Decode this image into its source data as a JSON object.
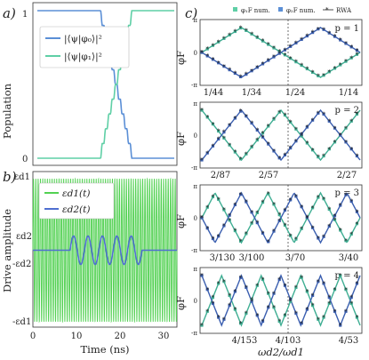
{
  "colors": {
    "phi0": "#5b8fd6",
    "phi1": "#5fcfa6",
    "eps1": "#52d152",
    "eps2": "#4f6fd0",
    "num1": "#3fae93",
    "num2": "#3b5fb0",
    "rwa": "#222222"
  },
  "panel_a": {
    "letter": "a)",
    "ylabel": "Population",
    "yticks": [
      "1",
      "0"
    ],
    "legend": [
      "|⟨ψ|φ₀⟩|²",
      "|⟨ψ|φ₁⟩|²"
    ]
  },
  "panel_b": {
    "letter": "b)",
    "ylabel": "Drive amplitude",
    "xlabel": "Time (ns)",
    "yticks": [
      "εd1",
      "εd2",
      "-εd2",
      "-εd1"
    ],
    "xticks": [
      "0",
      "10",
      "20",
      "30"
    ],
    "legend": [
      "εd1(t)",
      "εd2(t)"
    ]
  },
  "panel_c": {
    "letter": "c)",
    "legend": [
      "φ₁F num.",
      "φ₂F num.",
      "RWA"
    ],
    "ylabel": "φF",
    "xlabel": "ωd2/ωd1",
    "subplots": [
      {
        "p": "p = 1",
        "yticks": [
          "π",
          "0",
          "-π"
        ],
        "xticks": [
          "1/44",
          "1/34",
          "1/24",
          "1/14"
        ]
      },
      {
        "p": "p = 2",
        "yticks": [
          "π",
          "0",
          "-π"
        ],
        "xticks": [
          "2/87",
          "2/57",
          "2/27"
        ]
      },
      {
        "p": "p = 3",
        "yticks": [
          "π",
          "0",
          "-π"
        ],
        "xticks": [
          "3/130",
          "3/100",
          "3/70",
          "3/40"
        ]
      },
      {
        "p": "p = 4",
        "yticks": [
          "π",
          "0",
          "-π"
        ],
        "xticks": [
          "4/153",
          "4/103",
          "4/53"
        ]
      }
    ]
  },
  "chart_data": [
    {
      "type": "line",
      "ylabel": "Population",
      "ylim": [
        0,
        1
      ],
      "series": [
        {
          "name": "|⟨ψ|φ₀⟩|²",
          "values": [
            1,
            1,
            0.95,
            0.85,
            0.7,
            0.55,
            0.4,
            0.25,
            0.12,
            0.04,
            0,
            0
          ]
        },
        {
          "name": "|⟨ψ|φ₁⟩|²",
          "values": [
            0,
            0,
            0.05,
            0.15,
            0.3,
            0.45,
            0.6,
            0.75,
            0.88,
            0.96,
            1,
            1
          ]
        }
      ]
    },
    {
      "type": "line",
      "ylabel": "Drive amplitude",
      "xlabel": "Time (ns)",
      "x_range": [
        0,
        33
      ],
      "series": [
        {
          "name": "εd1(t)",
          "amplitude": 1
        },
        {
          "name": "εd2(t)",
          "amplitude": 0.14,
          "pulse_window_ns": [
            8.5,
            25
          ],
          "cycles": 5
        }
      ]
    },
    {
      "type": "scatter",
      "xlabel": "ωd2/ωd1",
      "ylabel": "φF",
      "ylim": [
        "-π",
        "π"
      ],
      "series": [
        {
          "name": "φ₁F num."
        },
        {
          "name": "φ₂F num."
        },
        {
          "name": "RWA"
        }
      ]
    }
  ]
}
